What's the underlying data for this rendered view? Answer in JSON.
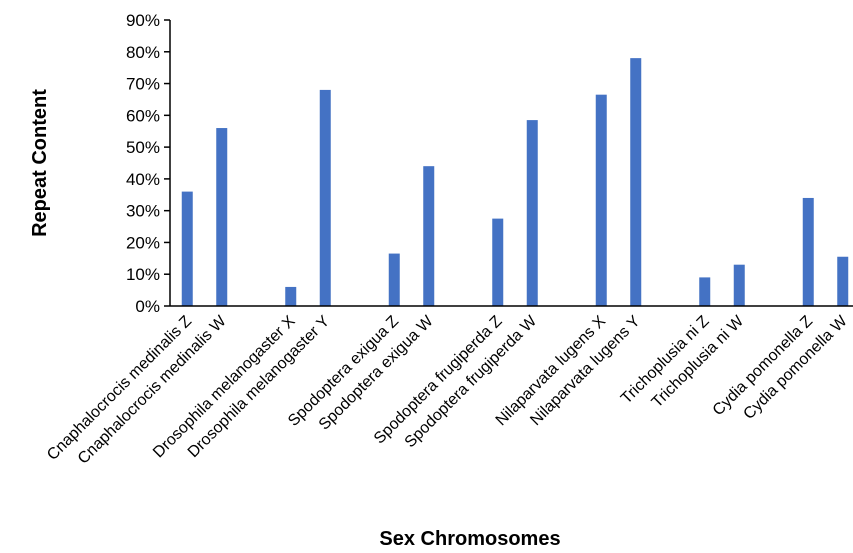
{
  "chart_data": {
    "type": "bar",
    "title": "",
    "xlabel": "Sex Chromosomes",
    "ylabel": "Repeat Content",
    "ylim": [
      0,
      90
    ],
    "yticks": [
      "0%",
      "10%",
      "20%",
      "30%",
      "40%",
      "50%",
      "60%",
      "70%",
      "80%",
      "90%"
    ],
    "grid": false,
    "legend": "none",
    "bar_color": "#4472C4",
    "groups": [
      {
        "categories": [
          "Cnaphalocrocis medinalis Z",
          "Cnaphalocrocis medinalis W"
        ],
        "values": [
          36,
          56
        ]
      },
      {
        "categories": [
          "Drosophila melanogaster X",
          "Drosophila melanogaster Y"
        ],
        "values": [
          6,
          68
        ]
      },
      {
        "categories": [
          "Spodoptera exigua Z",
          "Spodoptera exigua W"
        ],
        "values": [
          16.5,
          44
        ]
      },
      {
        "categories": [
          "Spodoptera frugiperda Z",
          "Spodoptera frugiperda W"
        ],
        "values": [
          27.5,
          58.5
        ]
      },
      {
        "categories": [
          "Nilaparvata lugens X",
          "Nilaparvata lugens Y"
        ],
        "values": [
          66.5,
          78
        ]
      },
      {
        "categories": [
          "Trichoplusia ni Z",
          "Trichoplusia ni W"
        ],
        "values": [
          9,
          13
        ]
      },
      {
        "categories": [
          "Cydia pomonella Z",
          "Cydia pomonella W"
        ],
        "values": [
          34,
          15.5
        ]
      }
    ]
  }
}
